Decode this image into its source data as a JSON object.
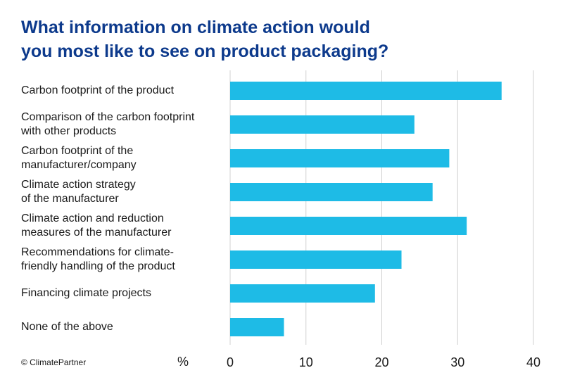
{
  "chart_data": {
    "type": "bar",
    "orientation": "horizontal",
    "title_lines": [
      "What information on climate action would",
      "you most like to see on product packaging?"
    ],
    "categories": [
      [
        "Carbon footprint of the product"
      ],
      [
        "Comparison of the carbon footprint",
        "with other products"
      ],
      [
        "Carbon footprint of the",
        "manufacturer/company"
      ],
      [
        "Climate action strategy",
        "of the manufacturer"
      ],
      [
        "Climate action and reduction",
        "measures of the manufacturer"
      ],
      [
        "Recommendations for climate-",
        "friendly handling of the product"
      ],
      [
        "Financing climate projects"
      ],
      [
        "None of the above"
      ]
    ],
    "values": [
      35.8,
      24.3,
      28.9,
      26.7,
      31.2,
      22.6,
      19.1,
      7.1
    ],
    "xlim": [
      0,
      40
    ],
    "xticks": [
      "0",
      "10",
      "20",
      "30",
      "40"
    ],
    "xlabel": "%",
    "bar_color": "#1ebbe6",
    "grid_color": "#d0d0d0",
    "title_color": "#0d3a8c",
    "credit": "© ClimatePartner"
  }
}
